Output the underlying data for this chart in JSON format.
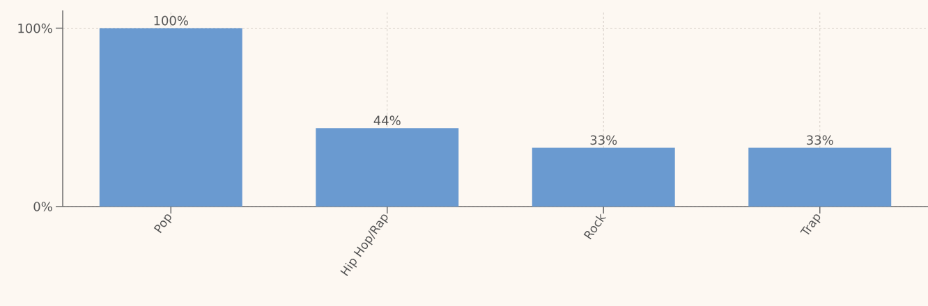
{
  "chart_data": {
    "type": "bar",
    "categories": [
      "Pop",
      "Hip Hop/Rap",
      "Rock",
      "Trap"
    ],
    "values": [
      100,
      44,
      33,
      33
    ],
    "value_labels": [
      "100%",
      "44%",
      "33%",
      "33%"
    ],
    "color": "#6a9ad0",
    "ylim": [
      0,
      110
    ],
    "yticks": [
      {
        "value": 0,
        "label": "0%"
      },
      {
        "value": 100,
        "label": "100%"
      }
    ],
    "grid": true
  }
}
